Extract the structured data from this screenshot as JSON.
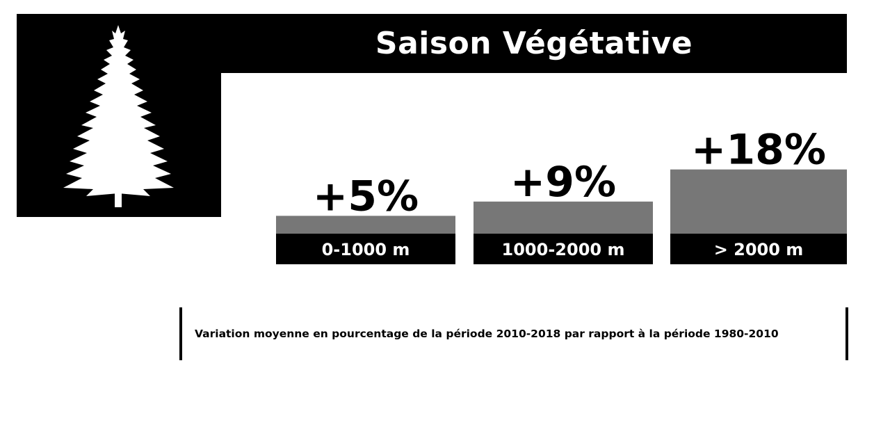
{
  "title": "Saison Végétative",
  "caption": "Variation moyenne en pourcentage de la période 2010-2018 par rapport à la période 1980-2010",
  "icons": {
    "tree": "fir-tree-icon"
  },
  "colors": {
    "bar": "#777777",
    "label_band": "#000000",
    "band_text": "#ffffff",
    "value_text": "#000000"
  },
  "chart_data": {
    "type": "bar",
    "title": "Saison Végétative",
    "categories": [
      "0-1000 m",
      "1000-2000 m",
      ">  2000 m"
    ],
    "values": [
      5,
      9,
      18
    ],
    "value_labels": [
      "+5%",
      "+9%",
      "+18%"
    ],
    "ylim": [
      0,
      20
    ],
    "xlabel": "",
    "ylabel": "",
    "grid": false
  }
}
